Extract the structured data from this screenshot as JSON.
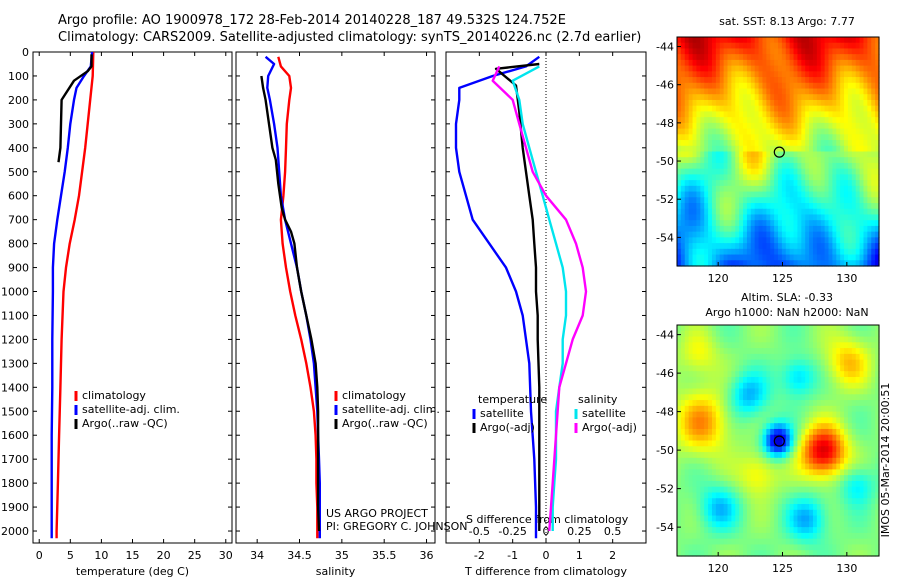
{
  "header": {
    "title_line1": "Argo profile: AO 1900978_172 28-Feb-2014 20140228_187 49.532S 124.752E",
    "title_line2": "Climatology: CARS2009. Satellite-adjusted climatology: synTS_20140226.nc (2.7d earlier)"
  },
  "colors": {
    "climatology": "#ff0000",
    "satellite": "#0000ff",
    "argo": "#000000",
    "salinity_sat": "#00e5ee",
    "salinity_argo": "#ff00ff"
  },
  "chart_data": [
    {
      "id": "temperature",
      "type": "line",
      "xlabel": "temperature (deg C)",
      "xlim": [
        -1,
        31
      ],
      "xticks": [
        0,
        5,
        10,
        15,
        20,
        25,
        30
      ],
      "ylim": [
        0,
        2050
      ],
      "yticks": [
        0,
        100,
        200,
        300,
        400,
        500,
        600,
        700,
        800,
        900,
        1000,
        1100,
        1200,
        1300,
        1400,
        1500,
        1600,
        1700,
        1800,
        1900,
        2000
      ],
      "legend": {
        "position": "center-right",
        "entries": [
          "climatology",
          "satellite-adj. clim.",
          "Argo(..raw -QC)"
        ]
      },
      "series": [
        {
          "name": "climatology",
          "color": "#ff0000",
          "points": [
            [
              8.7,
              0
            ],
            [
              8.6,
              100
            ],
            [
              8.2,
              200
            ],
            [
              7.8,
              300
            ],
            [
              7.4,
              400
            ],
            [
              6.9,
              500
            ],
            [
              6.4,
              600
            ],
            [
              5.7,
              700
            ],
            [
              4.9,
              800
            ],
            [
              4.3,
              900
            ],
            [
              3.9,
              1000
            ],
            [
              3.6,
              1200
            ],
            [
              3.4,
              1400
            ],
            [
              3.2,
              1600
            ],
            [
              3.0,
              1800
            ],
            [
              2.8,
              2000
            ],
            [
              2.8,
              2030
            ]
          ]
        },
        {
          "name": "satellite-adj. clim.",
          "color": "#0000ff",
          "points": [
            [
              8.5,
              0
            ],
            [
              8.3,
              60
            ],
            [
              7.2,
              100
            ],
            [
              6.0,
              150
            ],
            [
              5.6,
              200
            ],
            [
              5.0,
              300
            ],
            [
              4.6,
              400
            ],
            [
              4.1,
              500
            ],
            [
              3.5,
              600
            ],
            [
              2.9,
              700
            ],
            [
              2.4,
              800
            ],
            [
              2.2,
              900
            ],
            [
              2.2,
              1000
            ],
            [
              2.1,
              1200
            ],
            [
              2.1,
              1400
            ],
            [
              2.0,
              1600
            ],
            [
              2.0,
              1800
            ],
            [
              2.0,
              2000
            ],
            [
              2.0,
              2030
            ]
          ]
        },
        {
          "name": "Argo(..raw -QC)",
          "color": "#000000",
          "points": [
            [
              8.4,
              10
            ],
            [
              8.4,
              60
            ],
            [
              7.8,
              80
            ],
            [
              5.6,
              120
            ],
            [
              3.6,
              200
            ],
            [
              3.5,
              300
            ],
            [
              3.4,
              400
            ],
            [
              3.1,
              460
            ]
          ]
        }
      ]
    },
    {
      "id": "salinity",
      "type": "line",
      "xlabel": "salinity",
      "xlim": [
        33.75,
        36.1
      ],
      "xticks": [
        34,
        34.5,
        35,
        35.5,
        36
      ],
      "ylim": [
        0,
        2050
      ],
      "legend": {
        "position": "center-right",
        "entries": [
          "climatology",
          "satellite-adj. clim.",
          "Argo(..raw -QC)"
        ]
      },
      "series": [
        {
          "name": "climatology",
          "color": "#ff0000",
          "points": [
            [
              34.25,
              20
            ],
            [
              34.28,
              60
            ],
            [
              34.38,
              100
            ],
            [
              34.4,
              150
            ],
            [
              34.38,
              200
            ],
            [
              34.35,
              300
            ],
            [
              34.34,
              400
            ],
            [
              34.33,
              500
            ],
            [
              34.31,
              600
            ],
            [
              34.28,
              700
            ],
            [
              34.3,
              800
            ],
            [
              34.34,
              900
            ],
            [
              34.39,
              1000
            ],
            [
              34.45,
              1100
            ],
            [
              34.52,
              1200
            ],
            [
              34.58,
              1300
            ],
            [
              34.63,
              1400
            ],
            [
              34.67,
              1500
            ],
            [
              34.69,
              1600
            ],
            [
              34.7,
              1700
            ],
            [
              34.7,
              1800
            ],
            [
              34.71,
              1900
            ],
            [
              34.71,
              2000
            ],
            [
              34.71,
              2030
            ]
          ]
        },
        {
          "name": "satellite-adj. clim.",
          "color": "#0000ff",
          "points": [
            [
              34.1,
              20
            ],
            [
              34.2,
              50
            ],
            [
              34.13,
              100
            ],
            [
              34.12,
              150
            ],
            [
              34.15,
              200
            ],
            [
              34.2,
              300
            ],
            [
              34.24,
              400
            ],
            [
              34.26,
              500
            ],
            [
              34.28,
              600
            ],
            [
              34.33,
              700
            ],
            [
              34.4,
              800
            ],
            [
              34.47,
              900
            ],
            [
              34.52,
              1000
            ],
            [
              34.58,
              1100
            ],
            [
              34.63,
              1200
            ],
            [
              34.67,
              1300
            ],
            [
              34.69,
              1400
            ],
            [
              34.71,
              1500
            ],
            [
              34.72,
              1600
            ],
            [
              34.73,
              1700
            ],
            [
              34.74,
              1800
            ],
            [
              34.74,
              1900
            ],
            [
              34.74,
              2000
            ],
            [
              34.74,
              2030
            ]
          ]
        },
        {
          "name": "Argo(..raw -QC)",
          "color": "#000000",
          "points": [
            [
              34.05,
              100
            ],
            [
              34.07,
              150
            ],
            [
              34.1,
              200
            ],
            [
              34.14,
              300
            ],
            [
              34.18,
              400
            ],
            [
              34.22,
              450
            ],
            [
              34.25,
              550
            ],
            [
              34.29,
              650
            ],
            [
              34.33,
              700
            ],
            [
              34.4,
              750
            ],
            [
              34.44,
              800
            ],
            [
              34.47,
              900
            ],
            [
              34.52,
              1000
            ],
            [
              34.58,
              1100
            ],
            [
              34.64,
              1200
            ],
            [
              34.69,
              1300
            ],
            [
              34.71,
              1400
            ],
            [
              34.72,
              1500
            ],
            [
              34.72,
              1700
            ],
            [
              34.72,
              1900
            ],
            [
              34.73,
              2000
            ]
          ]
        }
      ]
    },
    {
      "id": "difference",
      "type": "line",
      "xlabel": "T difference from climatology",
      "xlabel_top": "S difference from climatology",
      "xlim": [
        -3.0,
        3.0
      ],
      "xticks_T": [
        -2,
        -1,
        0,
        1,
        2
      ],
      "xticks_S": [
        "-0.5",
        "-0.25",
        "0",
        "0.25",
        "0.5"
      ],
      "ylim": [
        0,
        2050
      ],
      "legend": {
        "position": "center",
        "temperature_title": "temperature",
        "salinity_title": "salinity",
        "entries_T": [
          "satellite",
          "Argo(-adj)"
        ],
        "entries_S": [
          "satellite",
          "Argo(-adj)"
        ]
      },
      "series": [
        {
          "name": "satellite",
          "color": "#0000ff",
          "points": [
            [
              -0.2,
              20
            ],
            [
              -0.6,
              60
            ],
            [
              -1.6,
              100
            ],
            [
              -2.6,
              150
            ],
            [
              -2.6,
              200
            ],
            [
              -2.7,
              300
            ],
            [
              -2.7,
              400
            ],
            [
              -2.6,
              500
            ],
            [
              -2.4,
              600
            ],
            [
              -2.2,
              700
            ],
            [
              -1.7,
              800
            ],
            [
              -1.2,
              900
            ],
            [
              -0.9,
              1000
            ],
            [
              -0.7,
              1100
            ],
            [
              -0.6,
              1200
            ],
            [
              -0.5,
              1300
            ],
            [
              -0.45,
              1500
            ],
            [
              -0.35,
              1700
            ],
            [
              -0.3,
              1900
            ],
            [
              -0.3,
              2000
            ],
            [
              -0.3,
              2030
            ]
          ]
        },
        {
          "name": "Argo(-adj)",
          "color": "#000000",
          "points": [
            [
              -0.2,
              50
            ],
            [
              -1.5,
              70
            ],
            [
              -0.9,
              140
            ],
            [
              -0.8,
              250
            ],
            [
              -0.7,
              400
            ],
            [
              -0.6,
              500
            ],
            [
              -0.5,
              600
            ],
            [
              -0.4,
              700
            ],
            [
              -0.35,
              800
            ],
            [
              -0.3,
              900
            ],
            [
              -0.3,
              1000
            ],
            [
              -0.25,
              1100
            ],
            [
              -0.25,
              1200
            ],
            [
              -0.2,
              1400
            ],
            [
              -0.2,
              1600
            ],
            [
              -0.2,
              1800
            ],
            [
              -0.2,
              2000
            ]
          ]
        },
        {
          "name": "satellite",
          "color": "#00e5ee",
          "points": [
            [
              -0.2,
              60
            ],
            [
              -1.0,
              120
            ],
            [
              -0.8,
              200
            ],
            [
              -0.7,
              300
            ],
            [
              -0.5,
              400
            ],
            [
              -0.3,
              500
            ],
            [
              -0.1,
              600
            ],
            [
              0.1,
              700
            ],
            [
              0.3,
              800
            ],
            [
              0.5,
              900
            ],
            [
              0.6,
              1000
            ],
            [
              0.6,
              1100
            ],
            [
              0.5,
              1200
            ],
            [
              0.5,
              1300
            ],
            [
              0.4,
              1400
            ],
            [
              0.3,
              1500
            ],
            [
              0.3,
              1600
            ],
            [
              0.3,
              1700
            ],
            [
              0.25,
              1800
            ],
            [
              0.2,
              1900
            ],
            [
              0.2,
              2000
            ]
          ]
        },
        {
          "name": "Argo(-adj)",
          "color": "#ff00ff",
          "points": [
            [
              -1.4,
              60
            ],
            [
              -1.6,
              120
            ],
            [
              -1.0,
              200
            ],
            [
              -0.8,
              300
            ],
            [
              -0.6,
              400
            ],
            [
              -0.4,
              500
            ],
            [
              0.0,
              600
            ],
            [
              0.6,
              700
            ],
            [
              0.9,
              800
            ],
            [
              1.1,
              900
            ],
            [
              1.2,
              1000
            ],
            [
              1.1,
              1100
            ],
            [
              0.8,
              1200
            ],
            [
              0.6,
              1300
            ],
            [
              0.4,
              1400
            ],
            [
              0.3,
              1600
            ],
            [
              0.2,
              1800
            ],
            [
              0.15,
              1900
            ],
            [
              0.1,
              2000
            ]
          ]
        }
      ]
    },
    {
      "id": "sst_map",
      "type": "heatmap",
      "title": "sat. SST: 8.13 Argo: 7.77",
      "xticks": [
        120,
        125,
        130
      ],
      "yticks": [
        -44,
        -46,
        -48,
        -50,
        -52,
        -54
      ],
      "xlim": [
        116.8,
        132.5
      ],
      "ylim": [
        -55.5,
        -43.5
      ],
      "marker": {
        "lon": 124.752,
        "lat": -49.532
      }
    },
    {
      "id": "sla_map",
      "type": "heatmap",
      "title_line1": "Altim. SLA: -0.33",
      "title_line2": "Argo h1000: NaN h2000: NaN",
      "xticks": [
        120,
        125,
        130
      ],
      "yticks": [
        -44,
        -46,
        -48,
        -50,
        -52,
        -54
      ],
      "xlim": [
        116.8,
        132.5
      ],
      "ylim": [
        -55.5,
        -43.5
      ],
      "marker": {
        "lon": 124.752,
        "lat": -49.532
      },
      "watermark": "IMOS 05-Mar-2014 20:00:51"
    }
  ],
  "credit": {
    "line1": "US ARGO PROJECT",
    "line2": "PI: GREGORY C. JOHNSON"
  }
}
